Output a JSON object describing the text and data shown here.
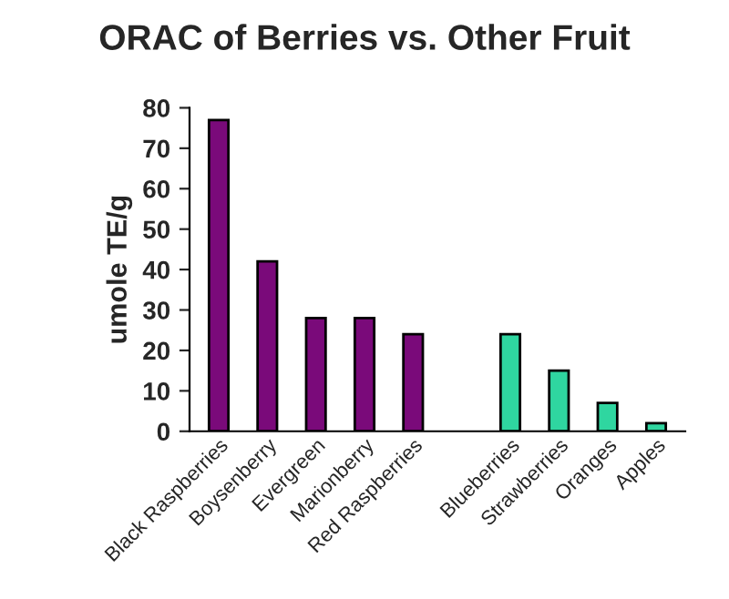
{
  "chart_data": {
    "type": "bar",
    "title": "ORAC of Berries vs. Other Fruit",
    "ylabel": "umole TE/g",
    "categories": [
      "Black Raspberries",
      "Boysenberry",
      "Evergreen",
      "Marionberry",
      "Red Raspberries",
      null,
      "Blueberries",
      "Strawberries",
      "Oranges",
      "Apples"
    ],
    "values": [
      77,
      42,
      28,
      28,
      24,
      null,
      24,
      15,
      7,
      2
    ],
    "colors": [
      "#7a0a7a",
      "#7a0a7a",
      "#7a0a7a",
      "#7a0a7a",
      "#7a0a7a",
      "#7a0a7a",
      "#2fd6a0",
      "#2fd6a0",
      "#2fd6a0",
      "#2fd6a0"
    ],
    "ylim": [
      0,
      80
    ],
    "yticks": [
      0,
      10,
      20,
      30,
      40,
      50,
      60,
      70,
      80
    ],
    "grid": false,
    "legend": false
  }
}
